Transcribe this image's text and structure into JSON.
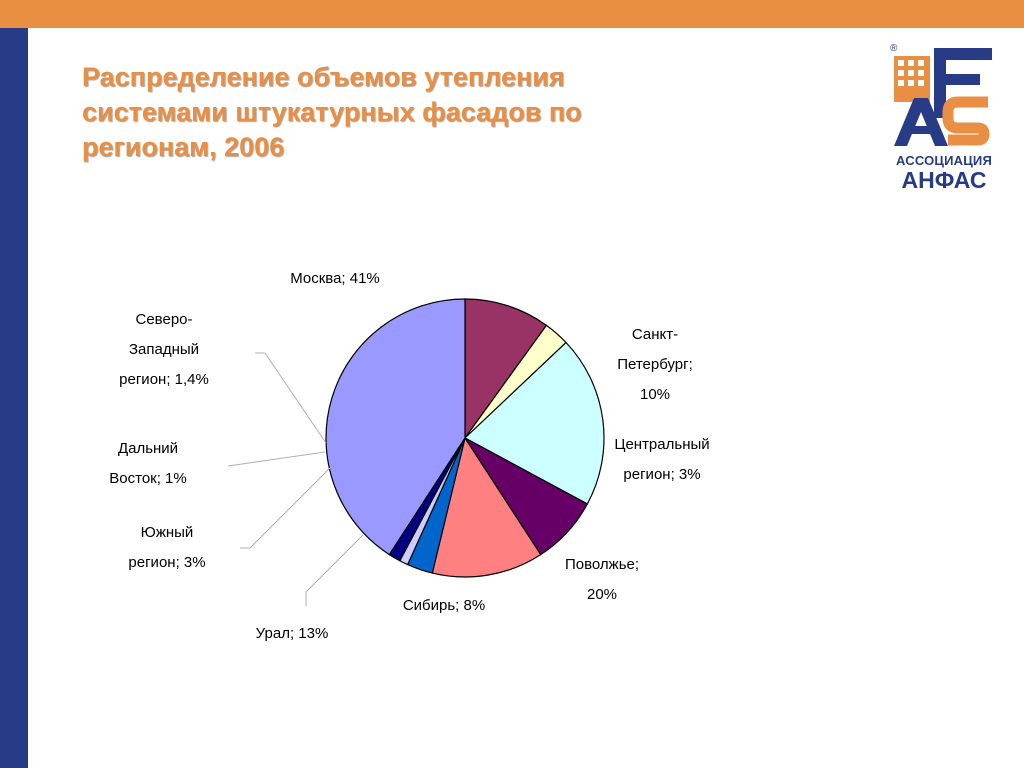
{
  "slide": {
    "title_lines": [
      "Распределение объемов утепления",
      "системами штукатурных фасадов по",
      "регионам, 2006"
    ]
  },
  "logo": {
    "caption_1": "АССОЦИАЦИЯ",
    "caption_2": "АНФАС",
    "registered_mark": "®"
  },
  "colors": {
    "top_bar": "#e98f43",
    "left_bar": "#283b86",
    "title": "#e98f43",
    "logo_orange": "#e98f43",
    "logo_blue": "#283b86"
  },
  "chart_data": {
    "type": "pie",
    "title": "",
    "start": "12 o'clock, clockwise",
    "slices": [
      {
        "label_lines": [
          "Санкт-",
          "Петербург;",
          "10%"
        ],
        "value": 10,
        "color": "#993366"
      },
      {
        "label_lines": [
          "Центральный",
          "регион; 3%"
        ],
        "value": 3,
        "color": "#ffffcc"
      },
      {
        "label_lines": [
          "Поволжье;",
          "20%"
        ],
        "value": 20,
        "color": "#ccffff"
      },
      {
        "label_lines": [
          "Сибирь; 8%"
        ],
        "value": 8,
        "color": "#660066"
      },
      {
        "label_lines": [
          "Урал; 13%"
        ],
        "value": 13,
        "color": "#ff8080"
      },
      {
        "label_lines": [
          "Южный",
          "регион; 3%"
        ],
        "value": 3,
        "color": "#0066cc"
      },
      {
        "label_lines": [
          "Дальний",
          "Восток; 1%"
        ],
        "value": 1,
        "color": "#ccccff"
      },
      {
        "label_lines": [
          "Северо-",
          "Западный",
          "регион; 1,4%"
        ],
        "value": 1.4,
        "color": "#000080"
      },
      {
        "label_lines": [
          "Москва; 41%"
        ],
        "value": 41,
        "color": "#9999ff"
      }
    ]
  }
}
